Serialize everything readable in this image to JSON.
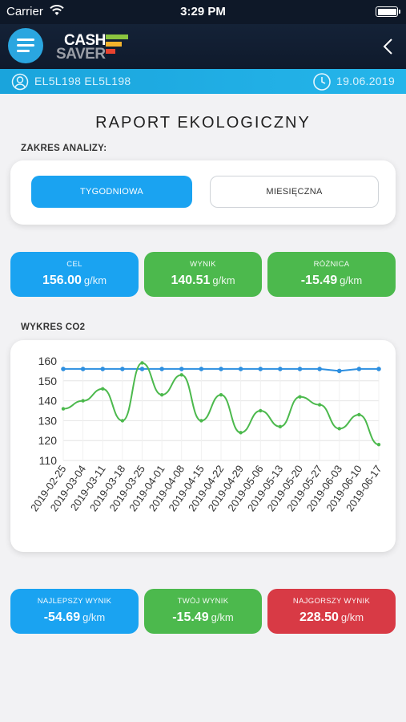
{
  "status_bar": {
    "carrier": "Carrier",
    "time": "3:29 PM"
  },
  "header": {
    "logo_line1": "CASH",
    "logo_line2": "SAVER"
  },
  "info_bar": {
    "user": "EL5L198 EL5L198",
    "date": "19.06.2019"
  },
  "page": {
    "title": "RAPORT EKOLOGICZNY"
  },
  "analysis": {
    "label": "ZAKRES ANALIZY:",
    "options": [
      "TYGODNIOWA",
      "MIESIĘCZNA"
    ],
    "selected": "TYGODNIOWA"
  },
  "summary": {
    "target": {
      "label": "CEL",
      "value": "156.00",
      "unit": "g/km"
    },
    "result": {
      "label": "WYNIK",
      "value": "140.51",
      "unit": "g/km"
    },
    "difference": {
      "label": "RÓŻNICA",
      "value": "-15.49",
      "unit": "g/km"
    }
  },
  "chart_section": {
    "label": "WYKRES CO2"
  },
  "chart_data": {
    "type": "line",
    "x": [
      "2019-02-25",
      "2019-03-04",
      "2019-03-11",
      "2019-03-18",
      "2019-03-25",
      "2019-04-01",
      "2019-04-08",
      "2019-04-15",
      "2019-04-22",
      "2019-04-29",
      "2019-05-06",
      "2019-05-13",
      "2019-05-20",
      "2019-05-27",
      "2019-06-03",
      "2019-06-10",
      "2019-06-17"
    ],
    "ylim": [
      110,
      160
    ],
    "yticks": [
      110,
      120,
      130,
      140,
      150,
      160
    ],
    "grid": true,
    "series": [
      {
        "color": "#2d8fe0",
        "markers": true,
        "values": [
          156,
          156,
          156,
          156,
          156,
          156,
          156,
          156,
          156,
          156,
          156,
          156,
          156,
          156,
          155,
          156,
          156
        ]
      },
      {
        "color": "#4cb94d",
        "markers": false,
        "smooth": true,
        "values": [
          136,
          140,
          146,
          130,
          159,
          143,
          153,
          130,
          143,
          124,
          135,
          127,
          142,
          138,
          126,
          133,
          118
        ]
      }
    ]
  },
  "comparison": {
    "best": {
      "label": "NAJLEPSZY WYNIK",
      "value": "-54.69",
      "unit": "g/km"
    },
    "yours": {
      "label": "TWÓJ WYNIK",
      "value": "-15.49",
      "unit": "g/km"
    },
    "worst": {
      "label": "NAJGORSZY WYNIK",
      "value": "228.50",
      "unit": "g/km"
    }
  },
  "colors": {
    "blue": "#1aa3f1",
    "green": "#4cb94d",
    "red": "#d83a45",
    "navy": "#0f1a2c",
    "cyan": "#1aa4dc"
  }
}
